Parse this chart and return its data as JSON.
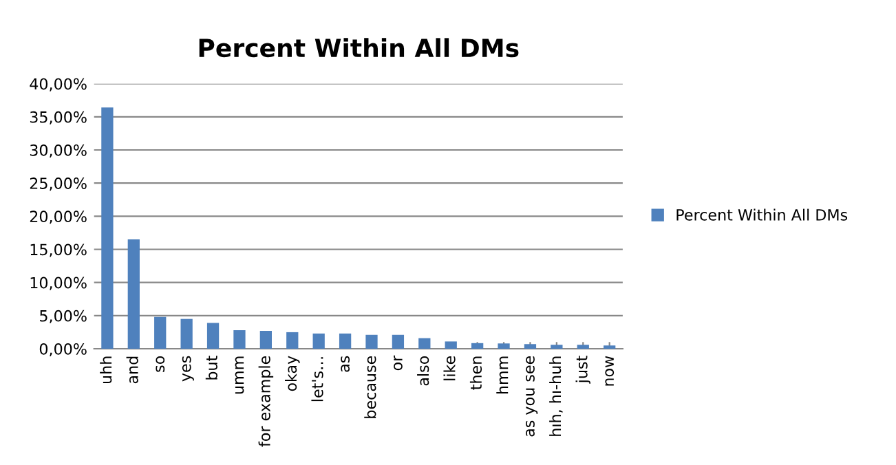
{
  "chart_data": {
    "type": "bar",
    "title": "Percent Within All DMs",
    "categories": [
      "uhh",
      "and",
      "so",
      "yes",
      "but",
      "umm",
      "for example",
      "okay",
      "let's…",
      "as",
      "because",
      "or",
      "also",
      "like",
      "then",
      "hmm",
      "as you see",
      "hıh, hı-huh",
      "just",
      "now"
    ],
    "series": [
      {
        "name": "Percent Within All DMs",
        "color": "#4f81bd",
        "values": [
          36.4,
          16.5,
          4.8,
          4.5,
          3.9,
          2.8,
          2.7,
          2.5,
          2.3,
          2.3,
          2.1,
          2.1,
          1.6,
          1.1,
          0.85,
          0.8,
          0.7,
          0.6,
          0.6,
          0.5
        ]
      }
    ],
    "ylim": [
      0,
      40
    ],
    "yticks": [
      {
        "value": 0,
        "label": "0,00%"
      },
      {
        "value": 5,
        "label": "5,00%"
      },
      {
        "value": 10,
        "label": "10,00%"
      },
      {
        "value": 15,
        "label": "15,00%"
      },
      {
        "value": 20,
        "label": "20,00%"
      },
      {
        "value": 25,
        "label": "25,00%"
      },
      {
        "value": 30,
        "label": "30,00%"
      },
      {
        "value": 35,
        "label": "35,00%"
      },
      {
        "value": 40,
        "label": "40,00%"
      }
    ],
    "grid": "y",
    "legend": "right"
  }
}
